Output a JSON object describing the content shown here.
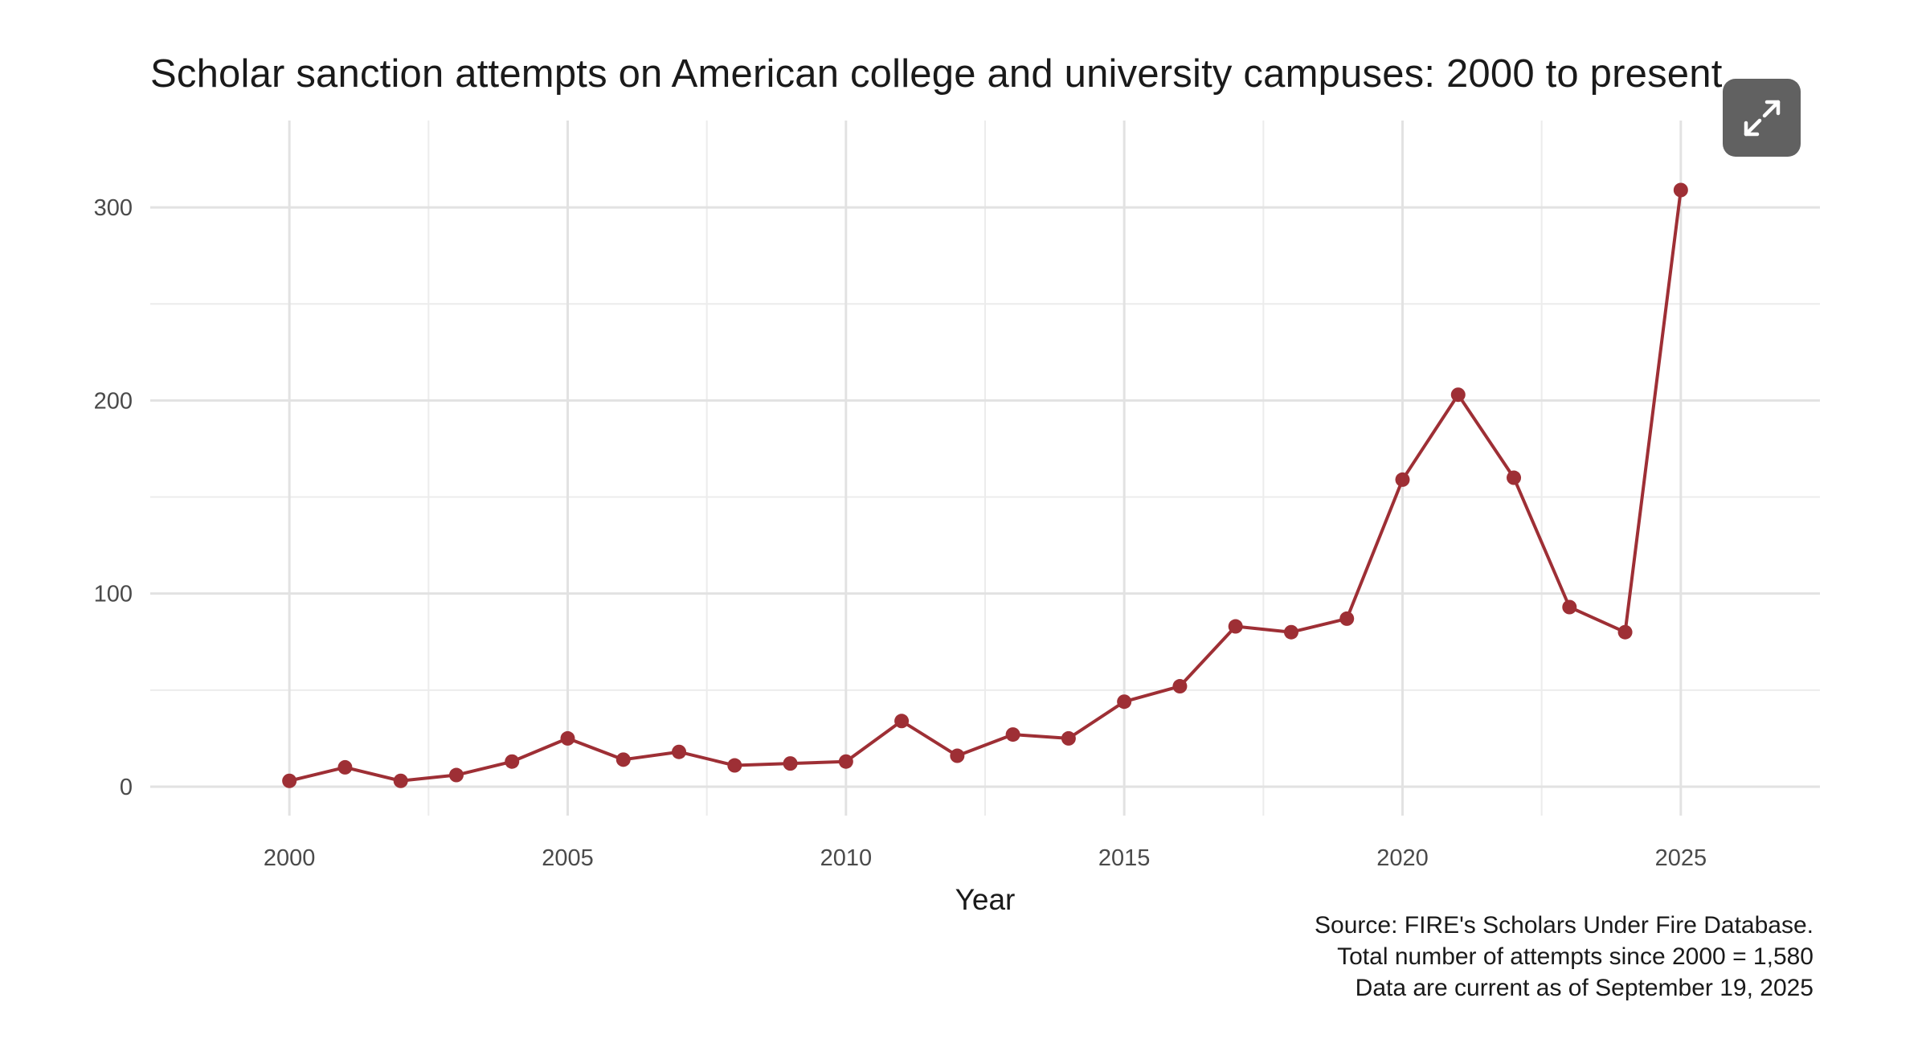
{
  "chart_data": {
    "type": "line",
    "title": "Scholar sanction attempts on American college and university campuses: 2000 to present",
    "xlabel": "Year",
    "ylabel": "",
    "x": [
      2000,
      2001,
      2002,
      2003,
      2004,
      2005,
      2006,
      2007,
      2008,
      2009,
      2010,
      2011,
      2012,
      2013,
      2014,
      2015,
      2016,
      2017,
      2018,
      2019,
      2020,
      2021,
      2022,
      2023,
      2024,
      2025
    ],
    "series": [
      {
        "name": "Scholar sanction attempts",
        "values": [
          3,
          10,
          3,
          6,
          13,
          25,
          14,
          18,
          11,
          12,
          13,
          34,
          16,
          27,
          25,
          44,
          52,
          83,
          80,
          87,
          159,
          203,
          160,
          93,
          80,
          309
        ]
      }
    ],
    "xlim": [
      1997.5,
      2027.5
    ],
    "ylim": [
      -15,
      345
    ],
    "x_ticks": [
      2000,
      2005,
      2010,
      2015,
      2020,
      2025
    ],
    "x_tick_labels": [
      "2000",
      "2005",
      "2010",
      "2015",
      "2020",
      "2025"
    ],
    "y_ticks": [
      0,
      100,
      200,
      300
    ],
    "y_tick_labels": [
      "0",
      "100",
      "200",
      "300"
    ],
    "grid": true,
    "line_color": "#9e2f35"
  },
  "notes": {
    "source": "Source: FIRE's Scholars Under Fire Database.",
    "total": "Total number of attempts since 2000 = 1,580",
    "current_as_of": "Data are current as of September 19, 2025"
  },
  "controls": {
    "expand_icon": "expand-arrows-icon"
  }
}
